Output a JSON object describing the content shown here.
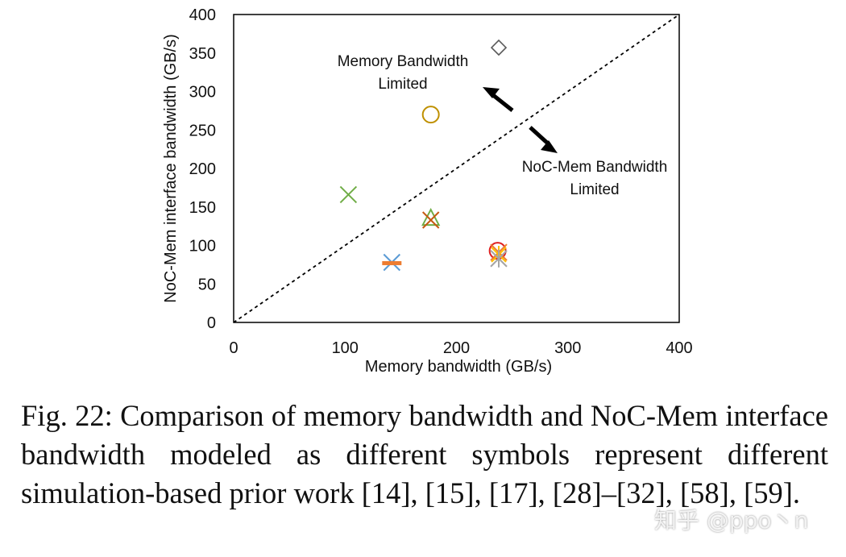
{
  "chart_data": {
    "type": "scatter",
    "xlabel": "Memory bandwidth (GB/s)",
    "ylabel": "NoC-Mem interface bandwidth (GB/s)",
    "xlim": [
      0,
      400
    ],
    "ylim": [
      0,
      400
    ],
    "xticks": [
      "0",
      "100",
      "200",
      "300",
      "400"
    ],
    "yticks": [
      "0",
      "50",
      "100",
      "150",
      "200",
      "250",
      "300",
      "350",
      "400"
    ],
    "diagonal": {
      "from": [
        0,
        0
      ],
      "to": [
        400,
        400
      ],
      "style": "dashed"
    },
    "series": [
      {
        "name": "diamond",
        "marker": "diamond",
        "color": "#595959",
        "x": 238,
        "y": 357
      },
      {
        "name": "circle-gold",
        "marker": "circle",
        "color": "#bf9000",
        "x": 177,
        "y": 270
      },
      {
        "name": "x-green",
        "marker": "x",
        "color": "#70ad47",
        "x": 103,
        "y": 166
      },
      {
        "name": "triangle-green",
        "marker": "triangle",
        "color": "#70ad47",
        "x": 177,
        "y": 135
      },
      {
        "name": "x-brown",
        "marker": "x",
        "color": "#c55a11",
        "x": 177,
        "y": 133
      },
      {
        "name": "circle-red",
        "marker": "circle",
        "color": "#e02020",
        "x": 237,
        "y": 93
      },
      {
        "name": "x-orange",
        "marker": "x",
        "color": "#ed7d31",
        "x": 238,
        "y": 91
      },
      {
        "name": "star-gold",
        "marker": "star",
        "color": "#ffc000",
        "x": 238,
        "y": 88
      },
      {
        "name": "asterisk-gray",
        "marker": "asterisk",
        "color": "#a5a5a5",
        "x": 238,
        "y": 83
      },
      {
        "name": "x-blue",
        "marker": "x",
        "color": "#5b9bd5",
        "x": 142,
        "y": 78
      },
      {
        "name": "dash-orange",
        "marker": "dash",
        "color": "#ed7d31",
        "x": 142,
        "y": 77
      }
    ],
    "annotations": {
      "memory_limited": [
        "Memory Bandwidth",
        "Limited"
      ],
      "noc_limited": [
        "NoC-Mem Bandwidth",
        "Limited"
      ]
    }
  },
  "caption": "Fig. 22: Comparison of memory bandwidth and NoC-Mem interface bandwidth modeled as different symbols represent different simulation-based prior work [14], [15], [17], [28]–[32], [58], [59].",
  "watermark": "知乎 @ppo丶n"
}
